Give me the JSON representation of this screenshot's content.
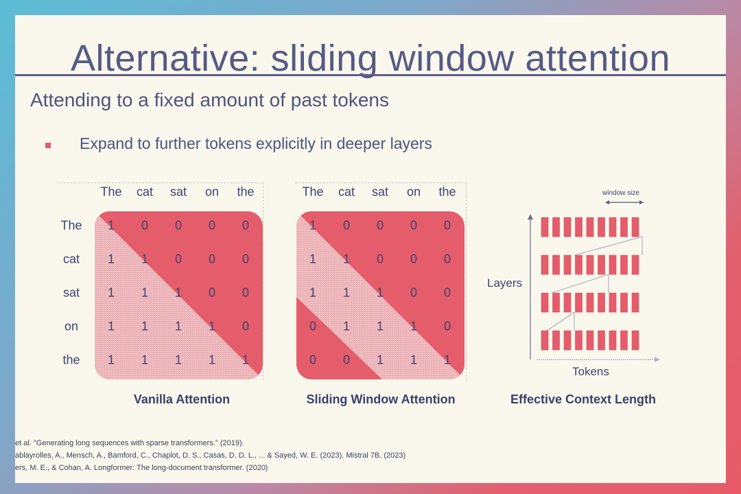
{
  "title": "Alternative: sliding window attention",
  "subtitle": "Attending to a fixed amount of past tokens",
  "bullet": "Expand to further tokens explicitly in deeper layers",
  "tokens": [
    "The",
    "cat",
    "sat",
    "on",
    "the"
  ],
  "vanilla": {
    "caption": "Vanilla Attention",
    "matrix": [
      [
        "1",
        "0",
        "0",
        "0",
        "0"
      ],
      [
        "1",
        "1",
        "0",
        "0",
        "0"
      ],
      [
        "1",
        "1",
        "1",
        "0",
        "0"
      ],
      [
        "1",
        "1",
        "1",
        "1",
        "0"
      ],
      [
        "1",
        "1",
        "1",
        "1",
        "1"
      ]
    ]
  },
  "sliding": {
    "caption": "Sliding Window Attention",
    "matrix": [
      [
        "1",
        "0",
        "0",
        "0",
        "0"
      ],
      [
        "1",
        "1",
        "0",
        "0",
        "0"
      ],
      [
        "1",
        "1",
        "1",
        "0",
        "0"
      ],
      [
        "0",
        "1",
        "1",
        "1",
        "0"
      ],
      [
        "0",
        "0",
        "1",
        "1",
        "1"
      ]
    ]
  },
  "context": {
    "caption": "Effective Context Length",
    "window_label": "window size",
    "y_label": "Layers",
    "x_label": "Tokens",
    "layers": 4,
    "tokens_per_layer": 9
  },
  "references": [
    "et al. \"Generating long sequences with sparse transformers.\" (2019).",
    "ablayrolles, A., Mensch, A., Bamford, C., Chaplot, D. S., Casas, D. D. L., ... & Sayed, W. E. (2023). Mistral 7B. (2023)",
    "ers, M. E., & Cohan, A. Longformer: The long-document transformer. (2020)"
  ],
  "colors": {
    "red": "#e55c6a",
    "pink": "#ecb3b7",
    "ink": "#3e4272"
  }
}
